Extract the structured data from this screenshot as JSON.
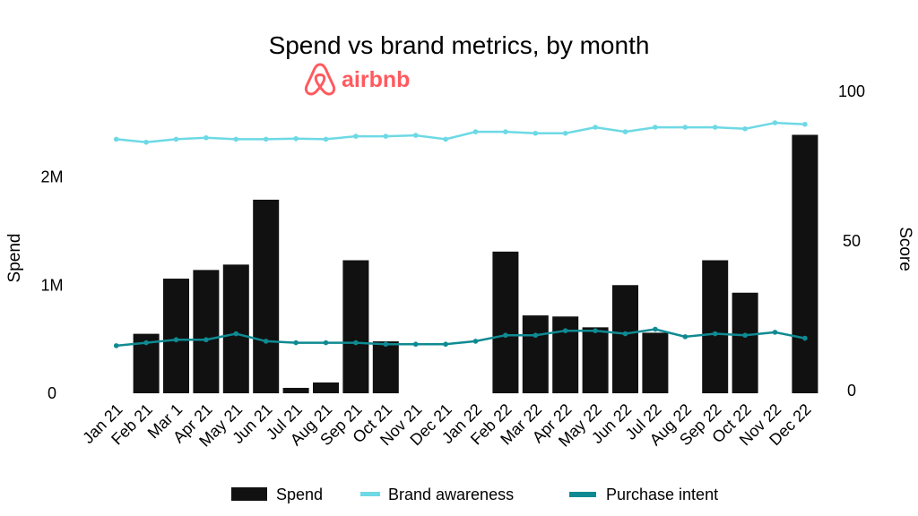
{
  "chart_data": {
    "type": "bar",
    "title": "Spend vs brand metrics, by month",
    "logo": "airbnb",
    "categories": [
      "Jan 21",
      "Feb 21",
      "Mar 1",
      "Apr 21",
      "May 21",
      "Jun 21",
      "Jul 21",
      "Aug 21",
      "Sep 21",
      "Oct 21",
      "Nov 21",
      "Dec 21",
      "Jan 22",
      "Feb 22",
      "Mar 22",
      "Apr 22",
      "May 22",
      "Jun 22",
      "Jul 22",
      "Aug 22",
      "Sep 22",
      "Oct 22",
      "Nov 22",
      "Dec 22"
    ],
    "y_left": {
      "label": "Spend",
      "ticks": [
        "0",
        "1M",
        "2M"
      ],
      "tick_values": [
        0,
        1000000,
        2000000
      ],
      "range": [
        0,
        2800000
      ]
    },
    "y_right": {
      "label": "Score",
      "ticks": [
        "0",
        "50",
        "100"
      ],
      "tick_values": [
        0,
        50,
        100
      ],
      "range": [
        0,
        100
      ]
    },
    "series": [
      {
        "name": "Spend",
        "type": "bar",
        "axis": "left",
        "color": "#111111",
        "values": [
          0,
          550000,
          1060000,
          1140000,
          1190000,
          1790000,
          50000,
          100000,
          1230000,
          480000,
          0,
          0,
          0,
          1310000,
          720000,
          710000,
          610000,
          1000000,
          560000,
          0,
          1230000,
          930000,
          0,
          2390000
        ]
      },
      {
        "name": "Brand awareness",
        "type": "line",
        "axis": "right",
        "color": "#6dd9e5",
        "values": [
          84,
          83,
          84,
          84.5,
          84,
          84,
          84.2,
          84,
          85,
          85,
          85.3,
          84,
          86.5,
          86.5,
          86,
          86,
          88,
          86.5,
          88,
          88,
          88,
          87.5,
          89.5,
          89
        ]
      },
      {
        "name": "Purchase intent",
        "type": "line",
        "axis": "right",
        "color": "#0f8a92",
        "values": [
          15,
          16,
          17,
          17,
          19,
          16.5,
          16,
          16,
          16,
          15.5,
          15.5,
          15.5,
          16.5,
          18.5,
          18.5,
          20,
          20,
          19,
          20.5,
          18,
          19,
          18.5,
          19.5,
          17.5
        ]
      }
    ],
    "legend": {
      "position": "bottom",
      "items": [
        "Spend",
        "Brand awareness",
        "Purchase intent"
      ]
    },
    "grid": false
  }
}
